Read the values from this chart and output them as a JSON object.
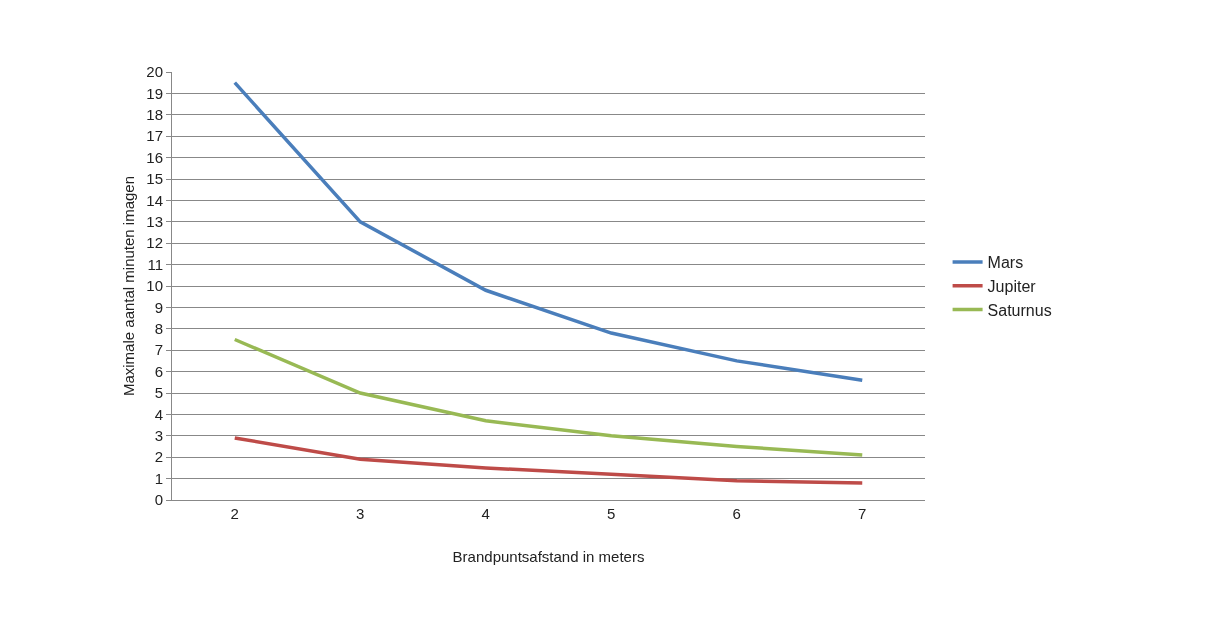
{
  "chart_data": {
    "type": "line",
    "xlabel": "Brandpuntsafstand in meters",
    "ylabel": "Maximale aantal minuten imagen",
    "categories": [
      "2",
      "3",
      "4",
      "5",
      "6",
      "7"
    ],
    "series": [
      {
        "name": "Mars",
        "color": "#4a7ebb",
        "values": [
          19.5,
          13.0,
          9.8,
          7.8,
          6.5,
          5.6
        ]
      },
      {
        "name": "Jupiter",
        "color": "#be4b48",
        "values": [
          2.9,
          1.9,
          1.5,
          1.2,
          0.9,
          0.8
        ]
      },
      {
        "name": "Saturnus",
        "color": "#98b954",
        "values": [
          7.5,
          5.0,
          3.7,
          3.0,
          2.5,
          2.1
        ]
      }
    ],
    "ylim": [
      0,
      20
    ],
    "yticks": [
      0,
      1,
      2,
      3,
      4,
      5,
      6,
      7,
      8,
      9,
      10,
      11,
      12,
      13,
      14,
      15,
      16,
      17,
      18,
      19,
      20
    ],
    "grid": "y",
    "legend": "right",
    "marker": "none",
    "line_style": "solid"
  }
}
